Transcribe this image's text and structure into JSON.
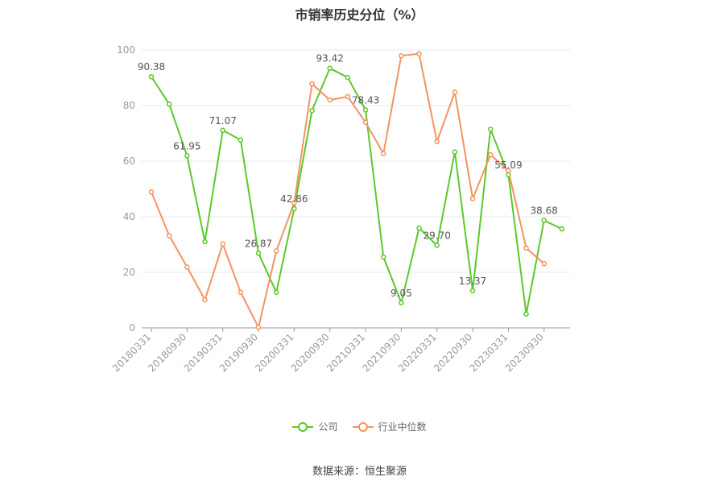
{
  "chart_data": {
    "type": "line",
    "title": "市销率历史分位（%）",
    "ylim": [
      0,
      100
    ],
    "yticks": [
      0,
      20,
      40,
      60,
      80,
      100
    ],
    "categories": [
      "20180331",
      "20180630",
      "20180930",
      "20181231",
      "20190331",
      "20190630",
      "20190930",
      "20191231",
      "20200331",
      "20200630",
      "20200930",
      "20201231",
      "20210331",
      "20210630",
      "20210930",
      "20211231",
      "20220331",
      "20220630",
      "20220930",
      "20221231",
      "20230331",
      "20230630",
      "20230930",
      "20231231"
    ],
    "xtick_labels": [
      "20180331",
      "20180930",
      "20190331",
      "20190930",
      "20200331",
      "20200930",
      "20210331",
      "20210930",
      "20220331",
      "20220930",
      "20230331",
      "20230930"
    ],
    "series": [
      {
        "name": "公司",
        "color": "#5cc82c",
        "values": [
          90.38,
          80.5,
          61.95,
          31.0,
          71.07,
          67.6,
          26.87,
          12.8,
          42.86,
          78.2,
          93.42,
          90.1,
          78.43,
          25.5,
          9.05,
          35.9,
          29.7,
          63.3,
          13.37,
          71.5,
          55.09,
          5.0,
          38.68,
          35.6
        ],
        "labels": {
          "0": "90.38",
          "2": "61.95",
          "4": "71.07",
          "6": "26.87",
          "8": "42.86",
          "10": "93.42",
          "12": "78.43",
          "14": "9.05",
          "16": "29.70",
          "18": "13.37",
          "20": "55.09",
          "22": "38.68"
        }
      },
      {
        "name": "行业中位数",
        "color": "#f5935e",
        "values": [
          48.9,
          33.2,
          21.9,
          10.1,
          30.2,
          12.8,
          0.2,
          27.7,
          45.0,
          87.8,
          82.0,
          83.2,
          74.0,
          62.7,
          97.9,
          98.6,
          67.0,
          84.8,
          46.5,
          62.3,
          56.6,
          28.7,
          23.1,
          null
        ]
      }
    ],
    "legend_position": "bottom",
    "grid": true
  },
  "source": "数据来源：恒生聚源"
}
